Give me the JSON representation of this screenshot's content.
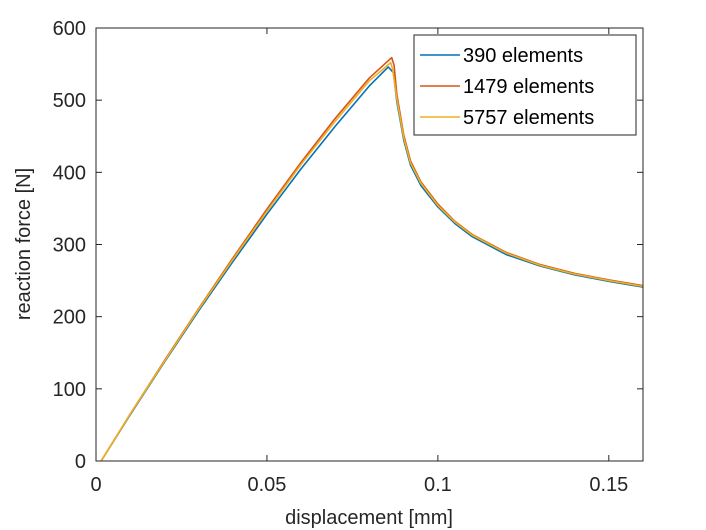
{
  "chart_data": {
    "type": "line",
    "xlabel": "displacement [mm]",
    "ylabel": "reaction force [N]",
    "xlim": [
      0,
      0.16
    ],
    "ylim": [
      0,
      600
    ],
    "xticks": [
      0,
      0.05,
      0.1,
      0.15
    ],
    "xtick_labels": [
      "0",
      "0.05",
      "0.1",
      "0.15"
    ],
    "yticks": [
      0,
      100,
      200,
      300,
      400,
      500,
      600
    ],
    "ytick_labels": [
      "0",
      "100",
      "200",
      "300",
      "400",
      "500",
      "600"
    ],
    "grid": false,
    "legend_position": "top-right",
    "series": [
      {
        "name": "390 elements",
        "color": "#0072BD",
        "x": [
          0.0015,
          0.01,
          0.02,
          0.03,
          0.04,
          0.05,
          0.06,
          0.07,
          0.08,
          0.0855,
          0.087,
          0.088,
          0.09,
          0.092,
          0.095,
          0.1,
          0.105,
          0.11,
          0.12,
          0.13,
          0.14,
          0.15,
          0.16
        ],
        "y": [
          0,
          64,
          137,
          208,
          276,
          342,
          405,
          464,
          520,
          546,
          538,
          498,
          445,
          410,
          382,
          352,
          329,
          311,
          286,
          270,
          258,
          249,
          241
        ]
      },
      {
        "name": "1479 elements",
        "color": "#D95319",
        "x": [
          0.0015,
          0.01,
          0.02,
          0.03,
          0.04,
          0.05,
          0.06,
          0.07,
          0.08,
          0.0865,
          0.0872,
          0.088,
          0.09,
          0.092,
          0.095,
          0.1,
          0.105,
          0.11,
          0.12,
          0.13,
          0.14,
          0.15,
          0.16
        ],
        "y": [
          0,
          65,
          139,
          211,
          281,
          349,
          414,
          475,
          531,
          559,
          548,
          508,
          452,
          416,
          387,
          356,
          332,
          314,
          289,
          272,
          260,
          251,
          243
        ]
      },
      {
        "name": "5757 elements",
        "color": "#EDB120",
        "x": [
          0.0015,
          0.01,
          0.02,
          0.03,
          0.04,
          0.05,
          0.06,
          0.07,
          0.08,
          0.0862,
          0.0868,
          0.088,
          0.09,
          0.092,
          0.095,
          0.1,
          0.105,
          0.11,
          0.12,
          0.13,
          0.14,
          0.15,
          0.16
        ],
        "y": [
          0,
          65,
          138,
          210,
          279,
          346,
          411,
          471,
          527,
          552,
          542,
          502,
          448,
          413,
          385,
          354,
          331,
          313,
          288,
          271,
          259,
          250,
          242
        ]
      }
    ]
  }
}
